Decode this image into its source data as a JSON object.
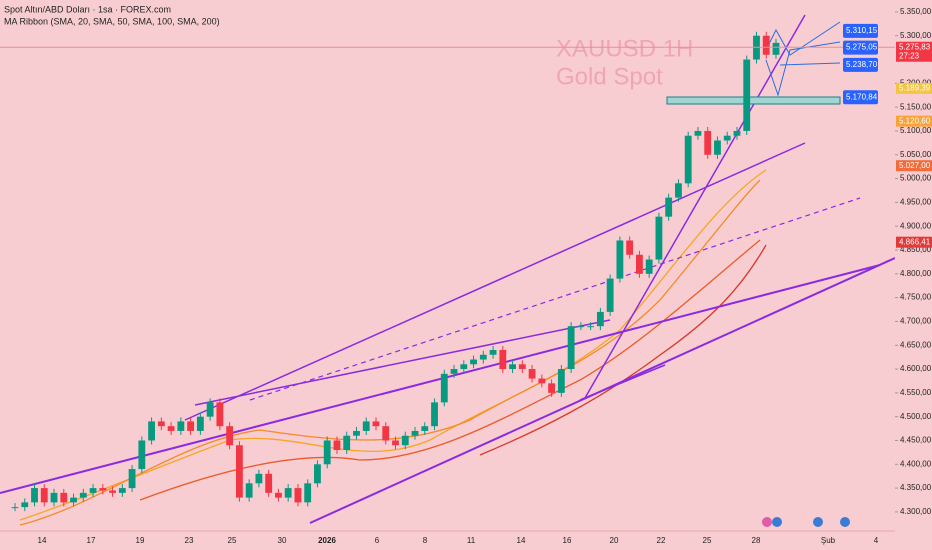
{
  "header": {
    "symbol_line": "Spot Altın/ABD Doları · 1sa · FOREX.com",
    "indicator": "MA Ribbon (SMA, 20, SMA, 50, SMA, 100, SMA, 200)"
  },
  "watermark": {
    "title": "XAUUSD 1H",
    "subtitle": "Gold Spot"
  },
  "chart_data": {
    "type": "candlestick",
    "x_labels": [
      "14",
      "17",
      "19",
      "23",
      "25",
      "30",
      "2026",
      "6",
      "8",
      "11",
      "14",
      "16",
      "20",
      "22",
      "25",
      "28",
      "Şub",
      "4"
    ],
    "close": [
      4310,
      4320,
      4350,
      4320,
      4340,
      4320,
      4330,
      4340,
      4350,
      4345,
      4340,
      4350,
      4390,
      4450,
      4490,
      4480,
      4470,
      4490,
      4470,
      4500,
      4530,
      4480,
      4440,
      4330,
      4360,
      4380,
      4340,
      4330,
      4350,
      4320,
      4360,
      4400,
      4450,
      4430,
      4460,
      4470,
      4490,
      4480,
      4450,
      4440,
      4460,
      4470,
      4480,
      4530,
      4590,
      4600,
      4610,
      4620,
      4630,
      4640,
      4600,
      4610,
      4600,
      4580,
      4570,
      4550,
      4600,
      4690,
      4690,
      4690,
      4720,
      4790,
      4870,
      4840,
      4800,
      4830,
      4920,
      4960,
      4990,
      5090,
      5100,
      5050,
      5080,
      5090,
      5100,
      5250,
      5300,
      5260,
      5285
    ],
    "up_color": "#089981",
    "down_color": "#f23645",
    "ylim": [
      4262,
      5375
    ],
    "yticks": [
      {
        "value": 5350,
        "label": "5.350,00"
      },
      {
        "value": 5300,
        "label": "5.300,00"
      },
      {
        "value": 5200,
        "label": "5.200,00"
      },
      {
        "value": 5150,
        "label": "5.150,00"
      },
      {
        "value": 5100,
        "label": "5.100,00"
      },
      {
        "value": 5050,
        "label": "5.050,00"
      },
      {
        "value": 5000,
        "label": "5.000,00"
      },
      {
        "value": 4950,
        "label": "4.950,00"
      },
      {
        "value": 4900,
        "label": "4.900,00"
      },
      {
        "value": 4850,
        "label": "4.850,00"
      },
      {
        "value": 4800,
        "label": "4.800,00"
      },
      {
        "value": 4750,
        "label": "4.750,00"
      },
      {
        "value": 4700,
        "label": "4.700,00"
      },
      {
        "value": 4650,
        "label": "4.650,00"
      },
      {
        "value": 4600,
        "label": "4.600,00"
      },
      {
        "value": 4550,
        "label": "4.550,00"
      },
      {
        "value": 4500,
        "label": "4.500,00"
      },
      {
        "value": 4450,
        "label": "4.450,00"
      },
      {
        "value": 4400,
        "label": "4.400,00"
      },
      {
        "value": 4350,
        "label": "4.350,00"
      },
      {
        "value": 4300,
        "label": "4.300,00"
      }
    ],
    "price_labels": [
      {
        "value": 5275.83,
        "label": "5.275,83",
        "timer": "27:23",
        "color": "#f23645"
      },
      {
        "value": 5189.39,
        "label": "5.189,39",
        "color": "#f5c542"
      },
      {
        "value": 5120.6,
        "label": "5.120,60",
        "color": "#f7a33a"
      },
      {
        "value": 5027,
        "label": "5.027,00",
        "color": "#f26b3a"
      },
      {
        "value": 4866.41,
        "label": "4.866,41",
        "color": "#e03a3a"
      }
    ],
    "targets": [
      {
        "value": 5310.15,
        "label": "5.310,15"
      },
      {
        "value": 5275.05,
        "label": "5.275,05"
      },
      {
        "value": 5238.7,
        "label": "5.238,70"
      },
      {
        "value": 5170.84,
        "label": "5.170,84"
      }
    ]
  }
}
